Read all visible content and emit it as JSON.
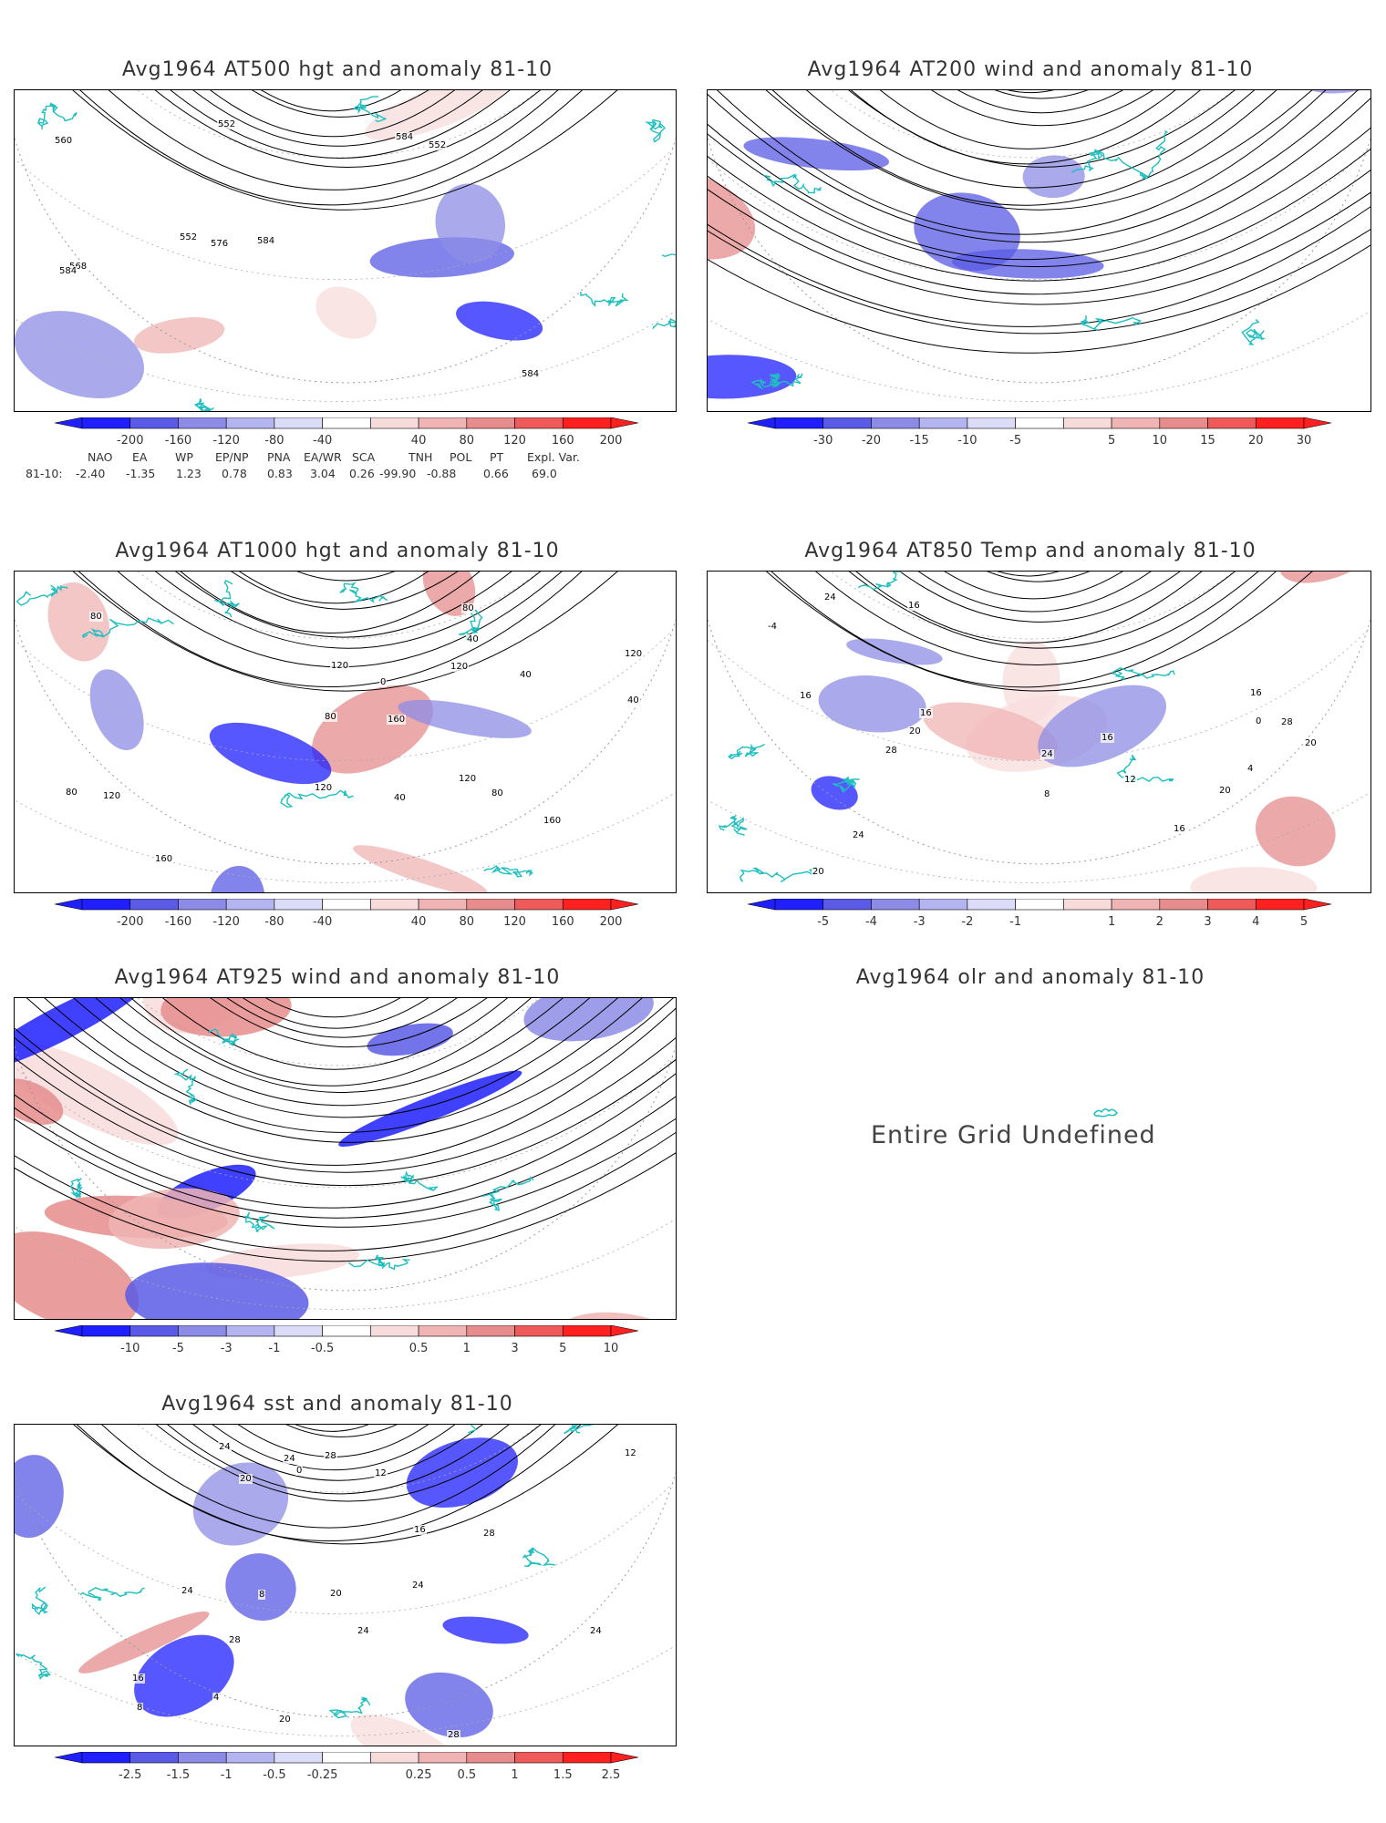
{
  "colors": {
    "neg_scale": [
      "#1f1fff",
      "#5a5ae6",
      "#8c8ce6",
      "#b4b4f0",
      "#dcdcf8"
    ],
    "pos_scale": [
      "#f8dcdc",
      "#f0b4b4",
      "#e68c8c",
      "#ee5a5a",
      "#ff2020"
    ],
    "coast": "#1fbfbf",
    "contour": "#000000"
  },
  "panels": [
    {
      "id": "p500",
      "title": "Avg1964 AT500 hgt and anomaly 81-10",
      "contour_labels": [
        "552",
        "552",
        "552",
        "560",
        "568",
        "576",
        "584",
        "584",
        "584",
        "584"
      ],
      "colorbar": [
        "-200",
        "-160",
        "-120",
        "-80",
        "-40",
        "40",
        "80",
        "120",
        "160",
        "200"
      ]
    },
    {
      "id": "p200",
      "title": "Avg1964 AT200 wind and anomaly 81-10",
      "contour_labels": [],
      "colorbar": [
        "-30",
        "-20",
        "-15",
        "-10",
        "-5",
        "5",
        "10",
        "15",
        "20",
        "30"
      ]
    },
    {
      "id": "p1000",
      "title": "Avg1964 AT1000 hgt and anomaly 81-10",
      "contour_labels": [
        "160",
        "80",
        "120",
        "160",
        "120",
        "160",
        "80",
        "40",
        "40",
        "80",
        "120",
        "40",
        "80",
        "120",
        "120",
        "0",
        "40",
        "80",
        "120"
      ],
      "colorbar": [
        "-200",
        "-160",
        "-120",
        "-80",
        "-40",
        "40",
        "80",
        "120",
        "160",
        "200"
      ]
    },
    {
      "id": "p850",
      "title": "Avg1964 AT850 Temp and anomaly 81-10",
      "contour_labels": [
        "20",
        "-4",
        "0",
        "4",
        "8",
        "12",
        "16",
        "20",
        "24",
        "28",
        "16",
        "16",
        "16",
        "24",
        "20",
        "24",
        "28",
        "20",
        "16",
        "16"
      ],
      "colorbar": [
        "-5",
        "-4",
        "-3",
        "-2",
        "-1",
        "1",
        "2",
        "3",
        "4",
        "5"
      ]
    },
    {
      "id": "p925",
      "title": "Avg1964 AT925 wind and anomaly 81-10",
      "contour_labels": [],
      "colorbar": [
        "-10",
        "-5",
        "-3",
        "-1",
        "-0.5",
        "0.5",
        "1",
        "3",
        "5",
        "10"
      ]
    },
    {
      "id": "polr",
      "title": "Avg1964 olr and anomaly 81-10",
      "undefined_text": "Entire Grid Undefined"
    },
    {
      "id": "psst",
      "title": "Avg1964 sst and anomaly 81-10",
      "contour_labels": [
        "28",
        "24",
        "28",
        "20",
        "16",
        "12",
        "8",
        "4",
        "0",
        "8",
        "12",
        "16",
        "20",
        "24",
        "28",
        "24",
        "24",
        "28",
        "24",
        "24",
        "20"
      ],
      "colorbar": [
        "-2.5",
        "-1.5",
        "-1",
        "-0.5",
        "-0.25",
        "0.25",
        "0.5",
        "1",
        "1.5",
        "2.5"
      ]
    }
  ],
  "indices": {
    "headers": [
      "NAO",
      "EA",
      "WP",
      "EP/NP",
      "PNA",
      "EA/WR",
      "SCA",
      "TNH",
      "POL",
      "PT",
      "Expl. Var."
    ],
    "row_label": "81-10:",
    "values": [
      "-2.40",
      "-1.35",
      "1.23",
      "0.78",
      "0.83",
      "3.04",
      "0.26",
      "-99.90",
      "-0.88",
      "0.66",
      "69.0"
    ]
  }
}
